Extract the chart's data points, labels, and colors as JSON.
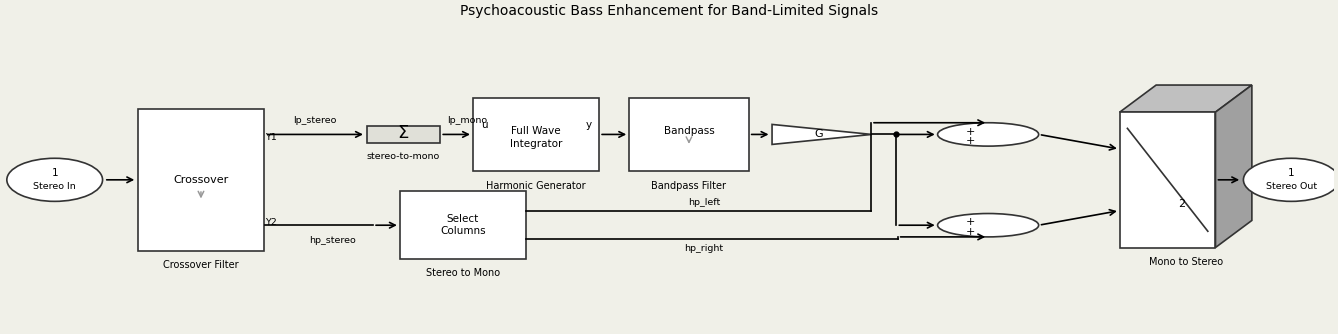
{
  "title": "Psychoacoustic Bass Enhancement for Band-Limited Signals",
  "bg_color": "#f0f0e8",
  "block_color": "#ffffff",
  "block_edge": "#333333",
  "line_color": "#000000",
  "stereo_in_label1": "1",
  "stereo_in_label2": "Stereo In",
  "crossover_label": "Crossover",
  "crossover_sublabel": "Crossover Filter",
  "sum_sublabel": "stereo-to-mono",
  "lp_stereo_label": "lp_stereo",
  "lp_mono_label": "lp_mono",
  "harmonic_label1": "Full Wave",
  "harmonic_label2": "Integrator",
  "harmonic_u": "u",
  "harmonic_y": "y",
  "harmonic_sublabel": "Harmonic Generator",
  "bandpass_label": "Bandpass",
  "bandpass_sublabel": "Bandpass Filter",
  "gain_label": "G",
  "select_label": "Select\nColumns",
  "select_sublabel": "Stereo to Mono",
  "hp_stereo_label": "hp_stereo",
  "hp_left_label": "hp_left",
  "hp_right_label": "hp_right",
  "mux_sublabel": "Mono to Stereo",
  "mux_num": "2",
  "stereo_out_label1": "1",
  "stereo_out_label2": "Stereo Out",
  "y1_label": "Y1",
  "y2_label": "Y2"
}
